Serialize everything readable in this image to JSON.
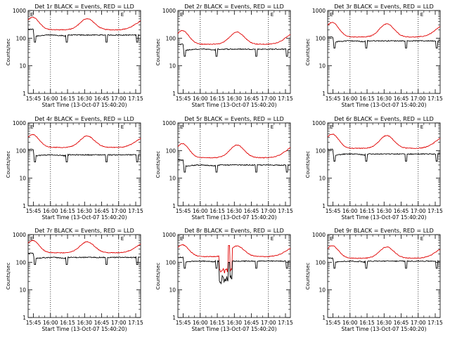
{
  "figure": {
    "start_time_label": "Start Time (13-Oct-07 15:40:20)",
    "ylabel": "Counts/sec",
    "x_ticks": [
      "15:45",
      "16:00",
      "16:15",
      "16:30",
      "16:45",
      "17:00",
      "17:15"
    ],
    "y_ticks": [
      "1",
      "10",
      "100",
      "1000"
    ],
    "marker_E": "E",
    "colors": {
      "events": "#000000",
      "lld": "#e00000",
      "dotted": "#000000"
    }
  },
  "chart_data": [
    {
      "type": "line",
      "title": "Det 1r BLACK = Events, RED = LLD",
      "xlabel": "Start Time (13-Oct-07 15:40:20)",
      "ylabel": "Counts/sec",
      "ylim": [
        1,
        1000
      ],
      "xlim_minutes": [
        0,
        99
      ],
      "vertical_dotted_lines": [
        "16:00",
        "17:00"
      ],
      "series": [
        {
          "name": "Events",
          "color": "#000000",
          "base": 130,
          "peak": 210,
          "gap": "low"
        },
        {
          "name": "LLD",
          "color": "#e00000",
          "base": 200,
          "peak": 600
        }
      ]
    },
    {
      "type": "line",
      "title": "Det 2r BLACK = Events, RED = LLD",
      "xlabel": "Start Time (13-Oct-07 15:40:20)",
      "ylabel": "Counts/sec",
      "ylim": [
        1,
        1000
      ],
      "xlim_minutes": [
        0,
        99
      ],
      "vertical_dotted_lines": [
        "16:00",
        "17:00"
      ],
      "series": [
        {
          "name": "Events",
          "color": "#000000",
          "base": 40,
          "peak": 60,
          "gap": "low"
        },
        {
          "name": "LLD",
          "color": "#e00000",
          "base": 60,
          "peak": 200
        }
      ]
    },
    {
      "type": "line",
      "title": "Det 3r BLACK = Events, RED = LLD",
      "xlabel": "Start Time (13-Oct-07 15:40:20)",
      "ylabel": "Counts/sec",
      "ylim": [
        1,
        1000
      ],
      "xlim_minutes": [
        0,
        99
      ],
      "vertical_dotted_lines": [
        "16:00",
        "17:00"
      ],
      "series": [
        {
          "name": "Events",
          "color": "#000000",
          "base": 80,
          "peak": 110,
          "gap": "low"
        },
        {
          "name": "LLD",
          "color": "#e00000",
          "base": 110,
          "peak": 400
        }
      ]
    },
    {
      "type": "line",
      "title": "Det 4r BLACK = Events, RED = LLD",
      "xlabel": "Start Time (13-Oct-07 15:40:20)",
      "ylabel": "Counts/sec",
      "ylim": [
        1,
        1000
      ],
      "xlim_minutes": [
        0,
        99
      ],
      "vertical_dotted_lines": [
        "16:00",
        "17:00"
      ],
      "series": [
        {
          "name": "Events",
          "color": "#000000",
          "base": 70,
          "peak": 110,
          "gap": "low"
        },
        {
          "name": "LLD",
          "color": "#e00000",
          "base": 130,
          "peak": 400
        }
      ]
    },
    {
      "type": "line",
      "title": "Det 5r BLACK = Events, RED = LLD",
      "xlabel": "Start Time (13-Oct-07 15:40:20)",
      "ylabel": "Counts/sec",
      "ylim": [
        1,
        1000
      ],
      "xlim_minutes": [
        0,
        99
      ],
      "vertical_dotted_lines": [
        "16:00",
        "17:00"
      ],
      "series": [
        {
          "name": "Events",
          "color": "#000000",
          "base": 30,
          "peak": 45,
          "gap": "low"
        },
        {
          "name": "LLD",
          "color": "#e00000",
          "base": 55,
          "peak": 190
        }
      ]
    },
    {
      "type": "line",
      "title": "Det 6r BLACK = Events, RED = LLD",
      "xlabel": "Start Time (13-Oct-07 15:40:20)",
      "ylabel": "Counts/sec",
      "ylim": [
        1,
        1000
      ],
      "xlim_minutes": [
        0,
        99
      ],
      "vertical_dotted_lines": [
        "16:00",
        "17:00"
      ],
      "series": [
        {
          "name": "Events",
          "color": "#000000",
          "base": 75,
          "peak": 110,
          "gap": "low"
        },
        {
          "name": "LLD",
          "color": "#e00000",
          "base": 120,
          "peak": 420
        }
      ]
    },
    {
      "type": "line",
      "title": "Det 7r BLACK = Events, RED = LLD",
      "xlabel": "Start Time (13-Oct-07 15:40:20)",
      "ylabel": "Counts/sec",
      "ylim": [
        1,
        1000
      ],
      "xlim_minutes": [
        0,
        99
      ],
      "vertical_dotted_lines": [
        "16:00",
        "17:00"
      ],
      "series": [
        {
          "name": "Events",
          "color": "#000000",
          "base": 150,
          "peak": 210,
          "gap": "low"
        },
        {
          "name": "LLD",
          "color": "#e00000",
          "base": 220,
          "peak": 650
        }
      ]
    },
    {
      "type": "line",
      "title": "Det 8r BLACK = Events, RED = LLD",
      "xlabel": "Start Time (13-Oct-07 15:40:20)",
      "ylabel": "Counts/sec",
      "ylim": [
        1,
        1000
      ],
      "xlim_minutes": [
        0,
        99
      ],
      "vertical_dotted_lines": [
        "16:00",
        "17:00"
      ],
      "series": [
        {
          "name": "Events",
          "color": "#000000",
          "base": 110,
          "peak": 150,
          "gap": "low",
          "dropout": true
        },
        {
          "name": "LLD",
          "color": "#e00000",
          "base": 160,
          "peak": 450,
          "dropout": true
        }
      ]
    },
    {
      "type": "line",
      "title": "Det 9r BLACK = Events, RED = LLD",
      "xlabel": "Start Time (13-Oct-07 15:40:20)",
      "ylabel": "Counts/sec",
      "ylim": [
        1,
        1000
      ],
      "xlim_minutes": [
        0,
        99
      ],
      "vertical_dotted_lines": [
        "16:00",
        "17:00"
      ],
      "series": [
        {
          "name": "Events",
          "color": "#000000",
          "base": 110,
          "peak": 140,
          "gap": "low"
        },
        {
          "name": "LLD",
          "color": "#e00000",
          "base": 140,
          "peak": 420
        }
      ]
    }
  ]
}
